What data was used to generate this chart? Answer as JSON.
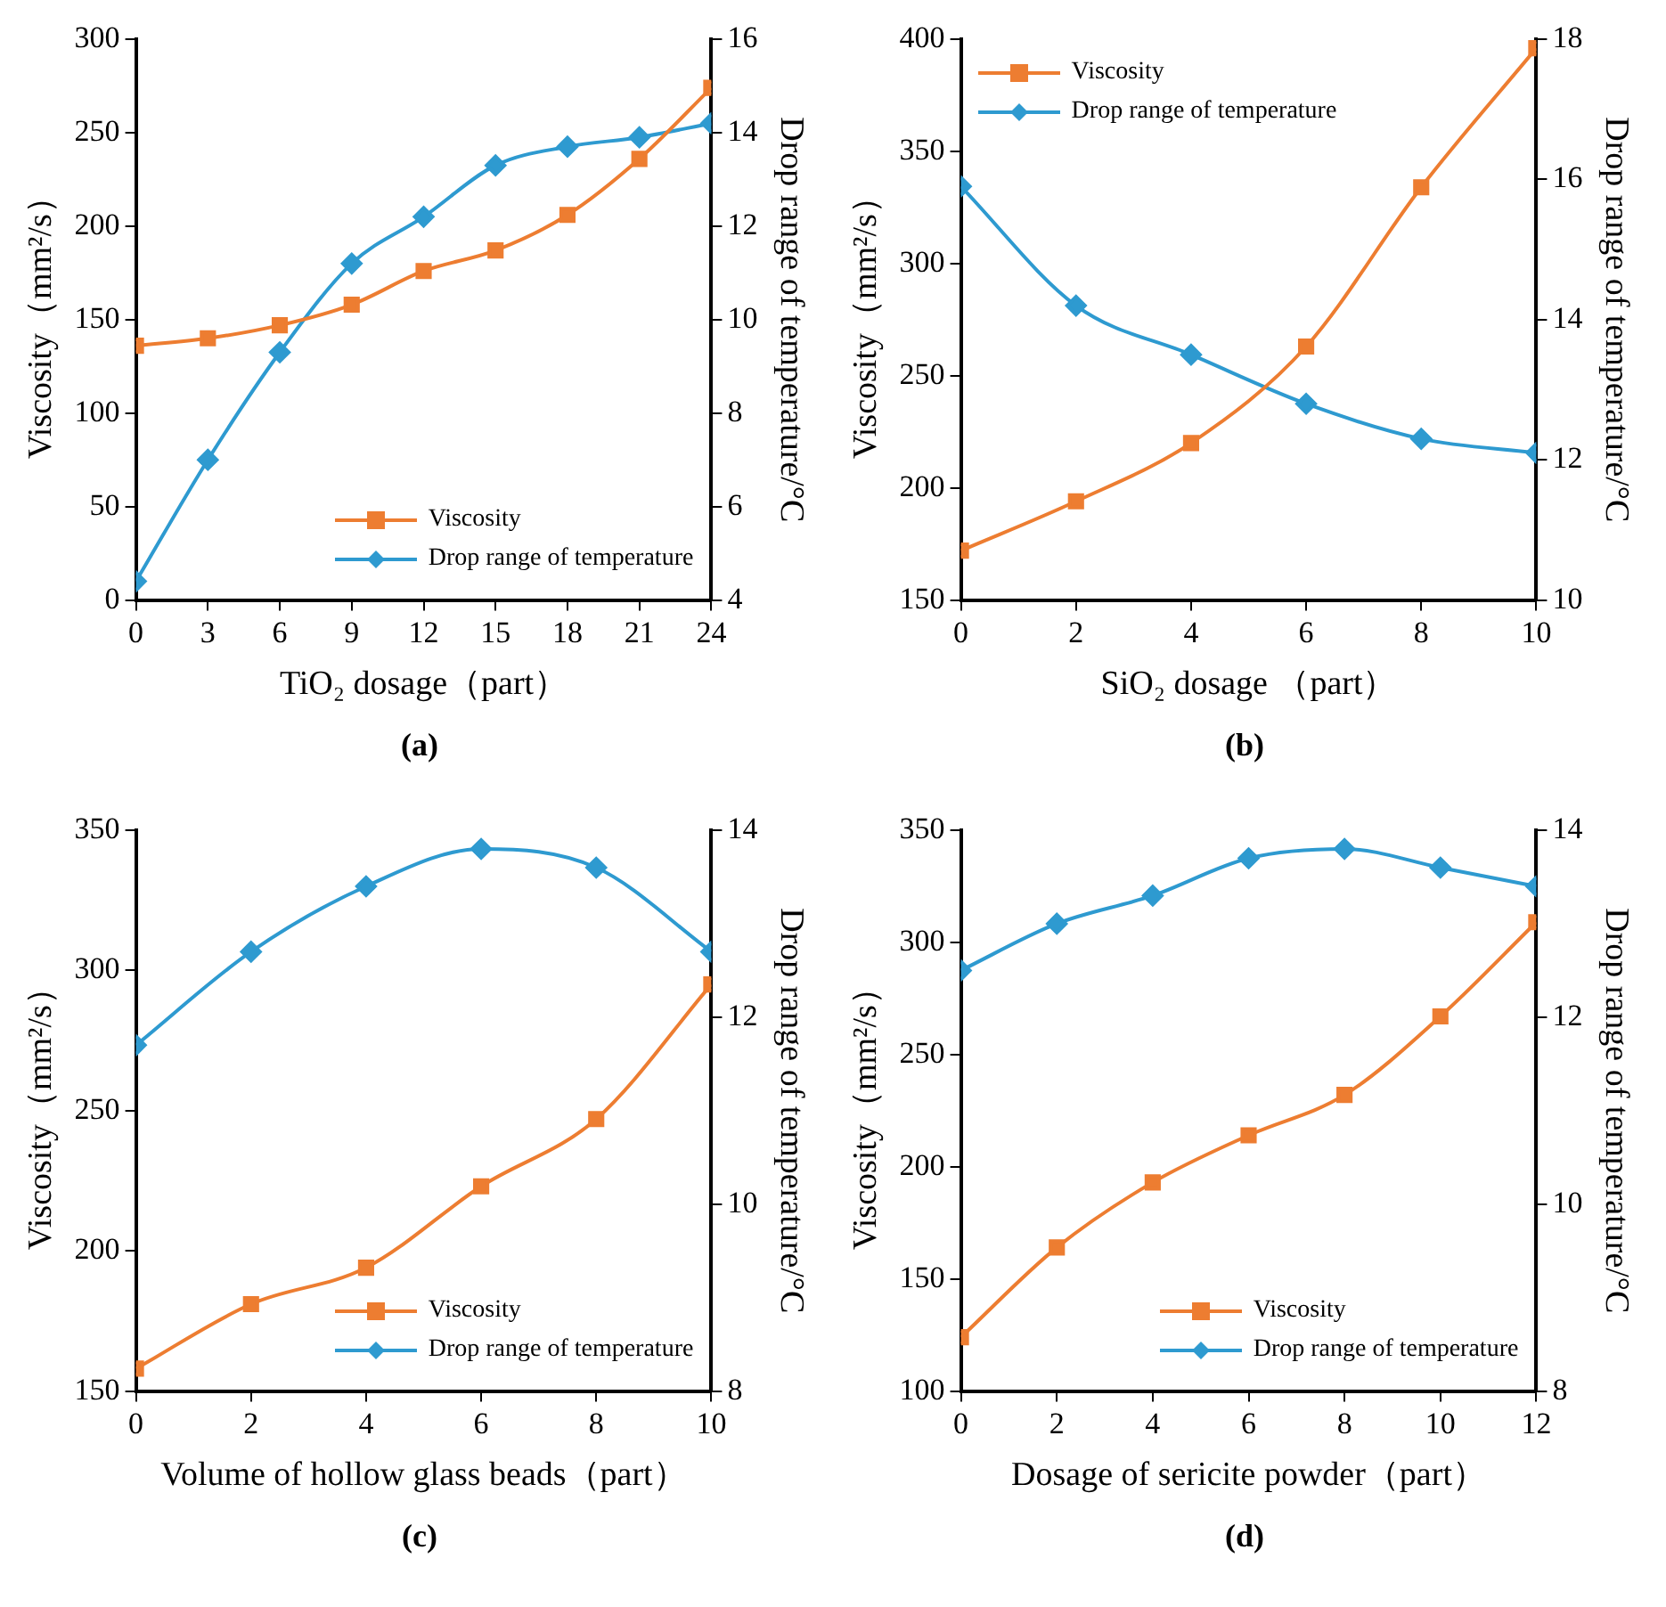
{
  "chart_data": [
    {
      "type": "line",
      "xlabel": "TiO₂ dosage（part）",
      "ylabel": "Viscosity（mm²/s）",
      "y2label": "Drop range of temperature/°C",
      "annotations": [
        "(a)"
      ],
      "x": [
        0,
        3,
        6,
        9,
        12,
        15,
        18,
        21,
        24
      ],
      "xlim": [
        0,
        24
      ],
      "xticks": [
        0,
        3,
        6,
        9,
        12,
        15,
        18,
        21,
        24
      ],
      "ylim": [
        0,
        300
      ],
      "yticks": [
        0,
        50,
        100,
        150,
        200,
        250,
        300
      ],
      "y2lim": [
        4,
        16
      ],
      "y2ticks": [
        4,
        6,
        8,
        10,
        12,
        14,
        16
      ],
      "grid": false,
      "legend": "bottom right",
      "series": [
        {
          "name": "Viscosity",
          "color": "#ed7d31",
          "marker": "square",
          "values": [
            136,
            140,
            147,
            158,
            176,
            187,
            206,
            236,
            274
          ]
        },
        {
          "name": "Drop range of temperature",
          "color": "#2e9ad0",
          "marker": "diamond",
          "axis": "y2",
          "values": [
            4.4,
            7.0,
            9.3,
            11.2,
            12.2,
            13.3,
            13.7,
            13.9,
            14.2
          ]
        }
      ]
    },
    {
      "type": "line",
      "xlabel": "SiO₂ dosage （part）",
      "ylabel": "Viscosity（mm²/s）",
      "y2label": "Drop range of temperature/°C",
      "annotations": [
        "(b)"
      ],
      "x": [
        0,
        2,
        4,
        6,
        8,
        10
      ],
      "xlim": [
        0,
        10
      ],
      "xticks": [
        0,
        2,
        4,
        6,
        8,
        10
      ],
      "ylim": [
        150,
        400
      ],
      "yticks": [
        150,
        200,
        250,
        300,
        350,
        400
      ],
      "y2lim": [
        10,
        18
      ],
      "y2ticks": [
        10,
        12,
        14,
        16,
        18
      ],
      "grid": false,
      "legend": "top left",
      "series": [
        {
          "name": "Viscosity",
          "color": "#ed7d31",
          "marker": "square",
          "values": [
            172,
            194,
            220,
            263,
            334,
            396
          ]
        },
        {
          "name": "Drop range of temperature",
          "color": "#2e9ad0",
          "marker": "diamond",
          "axis": "y2",
          "values": [
            15.9,
            14.2,
            13.5,
            12.8,
            12.3,
            12.1
          ]
        }
      ]
    },
    {
      "type": "line",
      "xlabel": "Volume of hollow glass beads（part）",
      "ylabel": "Viscosity（mm²/s）",
      "y2label": "Drop range of temperature/°C",
      "annotations": [
        "(c)"
      ],
      "x": [
        0,
        2,
        4,
        6,
        8,
        10
      ],
      "xlim": [
        0,
        10
      ],
      "xticks": [
        0,
        2,
        4,
        6,
        8,
        10
      ],
      "ylim": [
        150,
        350
      ],
      "yticks": [
        150,
        200,
        250,
        300,
        350
      ],
      "y2lim": [
        8,
        14
      ],
      "y2ticks": [
        8,
        10,
        12,
        14
      ],
      "grid": false,
      "legend": "bottom right",
      "series": [
        {
          "name": "Viscosity",
          "color": "#ed7d31",
          "marker": "square",
          "values": [
            158,
            181,
            194,
            223,
            247,
            295
          ]
        },
        {
          "name": "Drop range of temperature",
          "color": "#2e9ad0",
          "marker": "diamond",
          "axis": "y2",
          "values": [
            11.7,
            12.7,
            13.4,
            13.8,
            13.6,
            12.7
          ]
        }
      ]
    },
    {
      "type": "line",
      "xlabel": "Dosage of sericite powder（part）",
      "ylabel": "Viscosity（mm²/s）",
      "y2label": "Drop range of temperature/°C",
      "annotations": [
        "(d)"
      ],
      "x": [
        0,
        2,
        4,
        6,
        8,
        10,
        12
      ],
      "xlim": [
        0,
        12
      ],
      "xticks": [
        0,
        2,
        4,
        6,
        8,
        10,
        12
      ],
      "ylim": [
        100,
        350
      ],
      "yticks": [
        100,
        150,
        200,
        250,
        300,
        350
      ],
      "y2lim": [
        8,
        14
      ],
      "y2ticks": [
        8,
        10,
        12,
        14
      ],
      "grid": false,
      "legend": "bottom right",
      "series": [
        {
          "name": "Viscosity",
          "color": "#ed7d31",
          "marker": "square",
          "values": [
            124,
            164,
            193,
            214,
            232,
            267,
            309
          ]
        },
        {
          "name": "Drop range of temperature",
          "color": "#2e9ad0",
          "marker": "diamond",
          "axis": "y2",
          "values": [
            12.5,
            13.0,
            13.3,
            13.7,
            13.8,
            13.6,
            13.4
          ]
        }
      ]
    }
  ]
}
